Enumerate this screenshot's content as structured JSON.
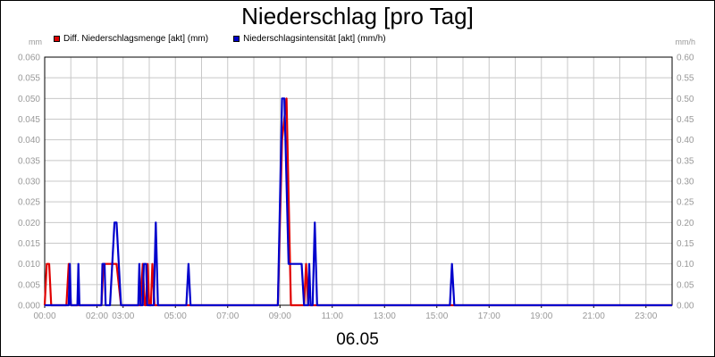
{
  "chart_data": {
    "type": "line",
    "title": "Niederschlag [pro Tag]",
    "xlabel": "06.05",
    "y_left_unit": "mm",
    "y_right_unit": "mm/h",
    "y_left_range": [
      0,
      0.06
    ],
    "y_right_range": [
      0,
      0.6
    ],
    "y_left_ticks": [
      "0.000",
      "0.005",
      "0.010",
      "0.015",
      "0.020",
      "0.025",
      "0.030",
      "0.035",
      "0.040",
      "0.045",
      "0.050",
      "0.055",
      "0.060"
    ],
    "y_right_ticks": [
      "0.00",
      "0.05",
      "0.10",
      "0.15",
      "0.20",
      "0.25",
      "0.30",
      "0.35",
      "0.40",
      "0.45",
      "0.50",
      "0.55",
      "0.60"
    ],
    "x_range_hours": [
      0,
      24
    ],
    "x_ticks": [
      {
        "h": 0,
        "label": "00:00"
      },
      {
        "h": 2,
        "label": "02:00"
      },
      {
        "h": 3,
        "label": "03:00"
      },
      {
        "h": 5,
        "label": "05:00"
      },
      {
        "h": 7,
        "label": "07:00"
      },
      {
        "h": 9,
        "label": "09:00"
      },
      {
        "h": 11,
        "label": "11:00"
      },
      {
        "h": 13,
        "label": "13:00"
      },
      {
        "h": 15,
        "label": "15:00"
      },
      {
        "h": 17,
        "label": "17:00"
      },
      {
        "h": 19,
        "label": "19:00"
      },
      {
        "h": 21,
        "label": "21:00"
      },
      {
        "h": 23,
        "label": "23:00"
      }
    ],
    "grid": true,
    "legend_position": "top-left",
    "series": [
      {
        "name": "Diff. Niederschlagsmenge [akt] (mm)",
        "color": "#e00000",
        "axis": "left",
        "points": [
          [
            0.0,
            0
          ],
          [
            0.08,
            0.01
          ],
          [
            0.17,
            0.01
          ],
          [
            0.25,
            0
          ],
          [
            0.83,
            0
          ],
          [
            0.92,
            0.01
          ],
          [
            1.0,
            0
          ],
          [
            2.17,
            0
          ],
          [
            2.25,
            0.01
          ],
          [
            2.75,
            0.01
          ],
          [
            2.92,
            0
          ],
          [
            3.67,
            0
          ],
          [
            3.75,
            0.01
          ],
          [
            3.83,
            0
          ],
          [
            3.88,
            0
          ],
          [
            3.94,
            0.01
          ],
          [
            4.0,
            0
          ],
          [
            4.06,
            0
          ],
          [
            4.12,
            0.01
          ],
          [
            4.2,
            0
          ],
          [
            8.92,
            0
          ],
          [
            9.08,
            0.04
          ],
          [
            9.25,
            0.05
          ],
          [
            9.42,
            0
          ],
          [
            9.92,
            0
          ],
          [
            10.0,
            0.01
          ],
          [
            10.08,
            0
          ],
          [
            24.0,
            0
          ]
        ]
      },
      {
        "name": "Niederschlagsintensität [akt] (mm/h)",
        "color": "#0000cc",
        "axis": "right",
        "points": [
          [
            0.0,
            0
          ],
          [
            0.92,
            0
          ],
          [
            0.96,
            0.1
          ],
          [
            1.0,
            0
          ],
          [
            1.25,
            0
          ],
          [
            1.29,
            0.1
          ],
          [
            1.33,
            0
          ],
          [
            2.17,
            0
          ],
          [
            2.21,
            0.1
          ],
          [
            2.29,
            0.1
          ],
          [
            2.33,
            0
          ],
          [
            2.5,
            0
          ],
          [
            2.67,
            0.2
          ],
          [
            2.75,
            0.2
          ],
          [
            2.92,
            0
          ],
          [
            3.58,
            0
          ],
          [
            3.62,
            0.1
          ],
          [
            3.67,
            0
          ],
          [
            3.75,
            0
          ],
          [
            3.79,
            0.1
          ],
          [
            3.88,
            0.1
          ],
          [
            3.92,
            0
          ],
          [
            4.17,
            0
          ],
          [
            4.25,
            0.2
          ],
          [
            4.33,
            0
          ],
          [
            5.42,
            0
          ],
          [
            5.5,
            0.1
          ],
          [
            5.58,
            0
          ],
          [
            8.92,
            0
          ],
          [
            9.08,
            0.5
          ],
          [
            9.17,
            0.5
          ],
          [
            9.33,
            0.1
          ],
          [
            9.83,
            0.1
          ],
          [
            9.92,
            0
          ],
          [
            10.08,
            0
          ],
          [
            10.12,
            0.1
          ],
          [
            10.17,
            0
          ],
          [
            10.25,
            0
          ],
          [
            10.33,
            0.2
          ],
          [
            10.42,
            0
          ],
          [
            15.5,
            0
          ],
          [
            15.58,
            0.1
          ],
          [
            15.67,
            0
          ],
          [
            24.0,
            0
          ]
        ]
      }
    ]
  }
}
